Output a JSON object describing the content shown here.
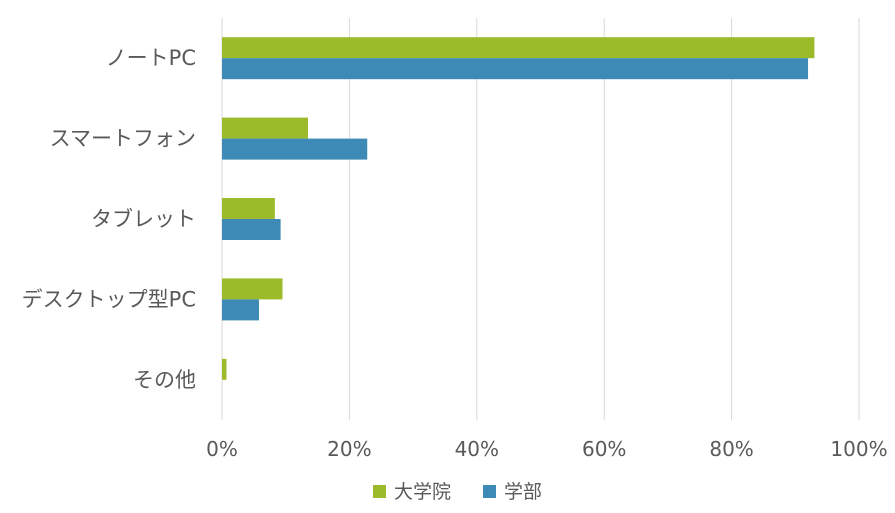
{
  "chart_data": {
    "type": "bar",
    "orientation": "horizontal",
    "title": "",
    "xlabel": "",
    "ylabel": "",
    "categories": [
      "ノートPC",
      "スマートフォン",
      "タブレット",
      "デスクトップ型PC",
      "その他"
    ],
    "series": [
      {
        "name": "大学院",
        "color": "#9bbb2a",
        "values": [
          93,
          13.5,
          8.3,
          9.5,
          0.7
        ]
      },
      {
        "name": "学部",
        "color": "#3c8ab5",
        "values": [
          92,
          22.8,
          9.2,
          5.8,
          0
        ]
      }
    ],
    "xlim": [
      0,
      100
    ],
    "x_ticks": [
      0,
      20,
      40,
      60,
      80,
      100
    ],
    "x_tick_labels": [
      "0%",
      "20%",
      "40%",
      "60%",
      "80%",
      "100%"
    ],
    "grid": "vertical",
    "legend_position": "bottom"
  }
}
